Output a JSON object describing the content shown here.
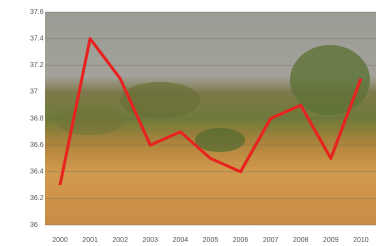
{
  "chart_data": {
    "type": "line",
    "categories": [
      "2000",
      "2001",
      "2002",
      "2003",
      "2004",
      "2005",
      "2006",
      "2007",
      "2008",
      "2009",
      "2010"
    ],
    "series": [
      {
        "color": "#e8231f",
        "values": [
          36.3,
          37.4,
          37.1,
          36.6,
          36.7,
          36.5,
          36.4,
          36.8,
          36.9,
          36.5,
          37.1
        ]
      }
    ],
    "ylim": [
      36,
      37.6
    ],
    "yticks": [
      36,
      36.2,
      36.4,
      36.6,
      36.8,
      37,
      37.2,
      37.4,
      37.6
    ],
    "grid": true
  }
}
